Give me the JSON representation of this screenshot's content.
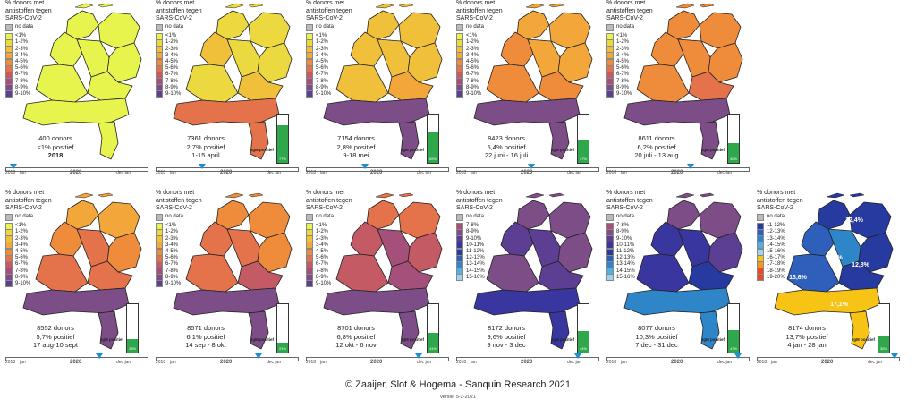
{
  "title_lines": [
    "% donors met",
    "antistoffen tegen",
    "SARS-CoV-2"
  ],
  "igm_label": "IgM positief",
  "timeline": {
    "jan": "jan",
    "dec_jan": "dec jan",
    "y2018": "2018",
    "y2020": "2020"
  },
  "credit": "Zaaijer, Slot & Hogema - Sanquin Research 2021",
  "version": "versie: 5-2-2021",
  "legend_nodata": "no data",
  "colors": {
    "nodata": "#bbbbbb",
    "a": "#e8f44e",
    "b": "#ecd93f",
    "c": "#f1c03a",
    "d": "#f3a63a",
    "e": "#ef8c3c",
    "f": "#e4724a",
    "g": "#c35a64",
    "h": "#a4507a",
    "i": "#7d4d88",
    "j": "#5c3f93",
    "k": "#3a36a0",
    "l": "#273a9f",
    "m": "#2d5fbb",
    "n": "#2e86c9",
    "o": "#54aee0",
    "p": "#9ed3f0",
    "q": "#f7c416",
    "r": "#f29a1f",
    "s": "#e84a2a"
  },
  "legend_a": [
    {
      "label": "<1%",
      "c": "a"
    },
    {
      "label": "1-2%",
      "c": "b"
    },
    {
      "label": "2-3%",
      "c": "c"
    },
    {
      "label": "3-4%",
      "c": "d"
    },
    {
      "label": "4-5%",
      "c": "e"
    },
    {
      "label": "5-6%",
      "c": "f"
    },
    {
      "label": "6-7%",
      "c": "g"
    },
    {
      "label": "7-8%",
      "c": "h"
    },
    {
      "label": "8-9%",
      "c": "i"
    },
    {
      "label": "9-10%",
      "c": "j"
    }
  ],
  "legend_b": [
    {
      "label": "7-8%",
      "c": "h"
    },
    {
      "label": "8-9%",
      "c": "i"
    },
    {
      "label": "9-10%",
      "c": "j"
    },
    {
      "label": "10-11%",
      "c": "k"
    },
    {
      "label": "11-12%",
      "c": "l"
    },
    {
      "label": "12-13%",
      "c": "m"
    },
    {
      "label": "13-14%",
      "c": "n"
    },
    {
      "label": "14-15%",
      "c": "o"
    },
    {
      "label": "15-16%",
      "c": "p"
    }
  ],
  "legend_c": [
    {
      "label": "11-12%",
      "c": "l"
    },
    {
      "label": "12-13%",
      "c": "m"
    },
    {
      "label": "13-14%",
      "c": "n"
    },
    {
      "label": "14-15%",
      "c": "o"
    },
    {
      "label": "15-16%",
      "c": "p"
    },
    {
      "label": "16-17%",
      "c": "q"
    },
    {
      "label": "17-18%",
      "c": "r"
    },
    {
      "label": "18-19%",
      "c": "s"
    },
    {
      "label": "19-20%",
      "c": "s"
    }
  ],
  "panels": [
    {
      "donors": "400  donors",
      "pct": "<1% positief",
      "period": "",
      "year": "2018",
      "legend": "legend_a",
      "igm": null,
      "marker": 0.03,
      "tlyear": "2018",
      "regions": [
        "a",
        "a",
        "a",
        "a",
        "a",
        "a",
        "a",
        "a",
        "a"
      ],
      "labels": []
    },
    {
      "donors": "7361 donors",
      "pct": "2,7% positief",
      "period": "1-15 april",
      "year": "",
      "legend": "legend_a",
      "igm": {
        "value": 0.77,
        "text": "77%"
      },
      "marker": 0.32,
      "tlyear": "2020",
      "regions": [
        "b",
        "b",
        "b",
        "c",
        "b",
        "c",
        "b",
        "f",
        "f"
      ],
      "labels": []
    },
    {
      "donors": "7154 donors",
      "pct": "2,8% positief",
      "period": "9-18 mei",
      "year": "",
      "legend": "legend_a",
      "igm": {
        "value": 0.65,
        "text": "65%"
      },
      "marker": 0.41,
      "tlyear": "2020",
      "regions": [
        "c",
        "c",
        "c",
        "c",
        "c",
        "d",
        "c",
        "i",
        "i"
      ],
      "labels": []
    },
    {
      "donors": "8423 donors",
      "pct": "5,4% positief",
      "period": "22 juni - 16 juli",
      "year": "",
      "legend": "legend_a",
      "igm": {
        "value": 0.47,
        "text": "47%"
      },
      "marker": 0.53,
      "tlyear": "2020",
      "regions": [
        "d",
        "d",
        "d",
        "e",
        "d",
        "e",
        "e",
        "i",
        "i"
      ],
      "labels": []
    },
    {
      "donors": "8611 donors",
      "pct": "6,2% positief",
      "period": "20 juli - 13 aug",
      "year": "",
      "legend": "legend_a",
      "igm": {
        "value": 0.4,
        "text": "40%"
      },
      "marker": 0.6,
      "tlyear": "2020",
      "regions": [
        "e",
        "e",
        "e",
        "e",
        "e",
        "f",
        "e",
        "i",
        "i"
      ],
      "labels": []
    },
    {
      "donors": "8552 donors",
      "pct": "5,7% positief",
      "period": "17 aug-10 sept",
      "year": "",
      "legend": "legend_a",
      "igm": {
        "value": 0.28,
        "text": "28%"
      },
      "marker": 0.67,
      "tlyear": "2020",
      "regions": [
        "d",
        "d",
        "e",
        "e",
        "f",
        "f",
        "f",
        "i",
        "i"
      ],
      "labels": []
    },
    {
      "donors": "8571 donors",
      "pct": "6,1% positief",
      "period": "14 sep - 8 okt",
      "year": "",
      "legend": "legend_a",
      "igm": {
        "value": 0.21,
        "text": "21%"
      },
      "marker": 0.74,
      "tlyear": "2020",
      "regions": [
        "e",
        "e",
        "e",
        "f",
        "f",
        "g",
        "f",
        "i",
        "i"
      ],
      "labels": []
    },
    {
      "donors": "8701 donors",
      "pct": "6,8% positief",
      "period": "12 okt - 6 nov",
      "year": "",
      "legend": "legend_a",
      "igm": {
        "value": 0.41,
        "text": "41%"
      },
      "marker": 0.81,
      "tlyear": "2020",
      "regions": [
        "f",
        "f",
        "g",
        "g",
        "h",
        "h",
        "g",
        "i",
        "i"
      ],
      "labels": []
    },
    {
      "donors": "8172 donors",
      "pct": "9,6% positief",
      "period": "9 nov - 3 dec",
      "year": "",
      "legend": "legend_b",
      "igm": {
        "value": 0.44,
        "text": "44%"
      },
      "marker": 0.88,
      "tlyear": "2020",
      "regions": [
        "i",
        "i",
        "i",
        "j",
        "j",
        "j",
        "i",
        "k",
        "k"
      ],
      "labels": []
    },
    {
      "donors": "8077 donors",
      "pct": "10,3% positief",
      "period": "7 dec - 31 dec",
      "year": "",
      "legend": "legend_b",
      "igm": {
        "value": 0.47,
        "text": "47%"
      },
      "marker": 0.95,
      "tlyear": "2020",
      "regions": [
        "i",
        "i",
        "j",
        "k",
        "k",
        "l",
        "k",
        "n",
        "n"
      ],
      "labels": []
    },
    {
      "donors": "8174 donors",
      "pct": "13,7% positief",
      "period": "4 jan - 28 jan",
      "year": "",
      "legend": "legend_c",
      "igm": {
        "value": 0.35,
        "text": "35%"
      },
      "marker": 1.0,
      "tlyear": "2020",
      "regions": [
        "l",
        "l",
        "l",
        "m",
        "n",
        "l",
        "m",
        "q",
        "q"
      ],
      "labels": [
        {
          "text": "12,4%",
          "x": 0.0,
          "y": 0.0
        },
        {
          "text": "11,9%",
          "x": 0.0,
          "y": 0.0
        },
        {
          "text": "12,8%",
          "x": 0.0,
          "y": 0.0
        },
        {
          "text": "13,6%",
          "x": 0.0,
          "y": 0.0
        },
        {
          "text": "17,1%",
          "x": 0.0,
          "y": 0.0
        }
      ]
    }
  ]
}
